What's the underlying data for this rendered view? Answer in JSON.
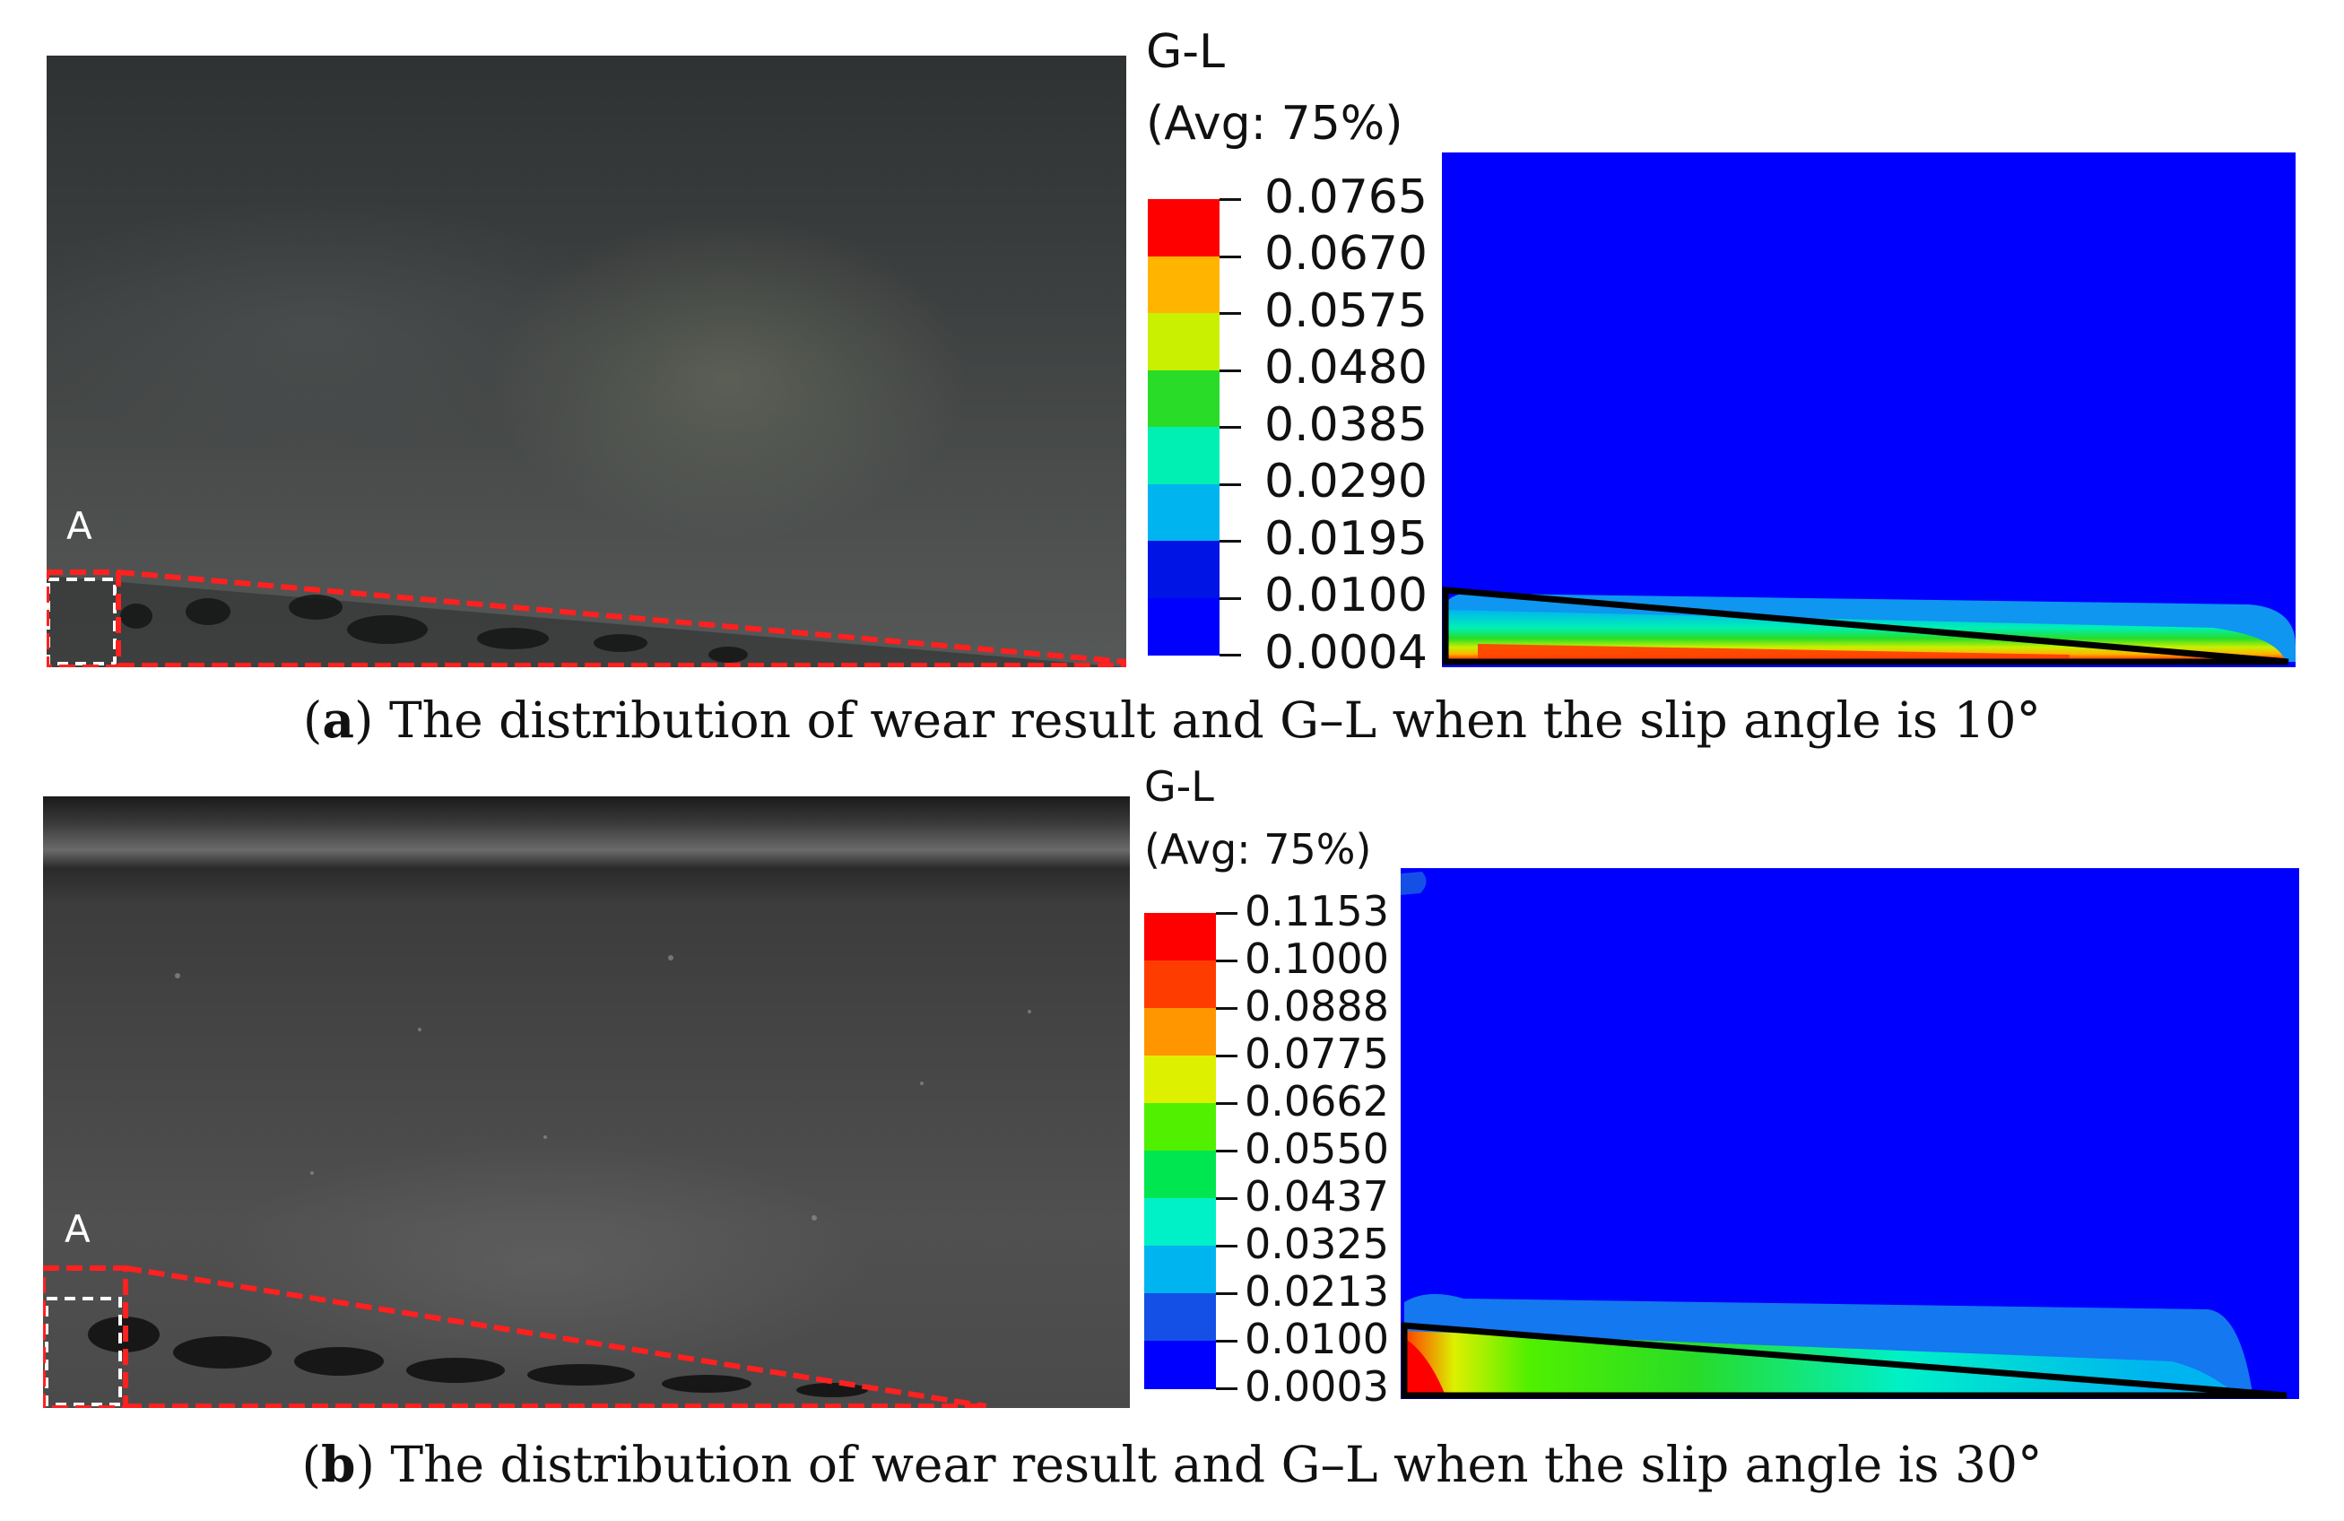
{
  "panel_a": {
    "photo_label": "A",
    "legend_title": "G-L",
    "legend_subtitle": "(Avg: 75%)",
    "legend_values": [
      "0.0765",
      "0.0670",
      "0.0575",
      "0.0480",
      "0.0385",
      "0.0290",
      "0.0195",
      "0.0100",
      "0.0004"
    ],
    "legend_colors": [
      "#ff0000",
      "#ffb400",
      "#c8f000",
      "#28dc28",
      "#00f0b4",
      "#00b4f0",
      "#0014e6",
      "#0000ff"
    ],
    "caption_letter": "a",
    "caption_text": "The distribution of wear result and G–L when the slip angle is 10°"
  },
  "panel_b": {
    "photo_label": "A",
    "legend_title": "G-L",
    "legend_subtitle": "(Avg: 75%)",
    "legend_values": [
      "0.1153",
      "0.1000",
      "0.0888",
      "0.0775",
      "0.0662",
      "0.0550",
      "0.0437",
      "0.0325",
      "0.0213",
      "0.0100",
      "0.0003"
    ],
    "legend_colors": [
      "#ff0000",
      "#ff3c00",
      "#ff9600",
      "#dcf000",
      "#50f000",
      "#00e650",
      "#00f0c8",
      "#00b4f0",
      "#1450e6",
      "#0000ff"
    ],
    "caption_letter": "b",
    "caption_text": "The distribution of wear result and G–L when the slip angle is 30°"
  },
  "colors": {
    "field_blue": "#0000ff",
    "dash_red": "#ff2020",
    "outline": "#000000"
  }
}
